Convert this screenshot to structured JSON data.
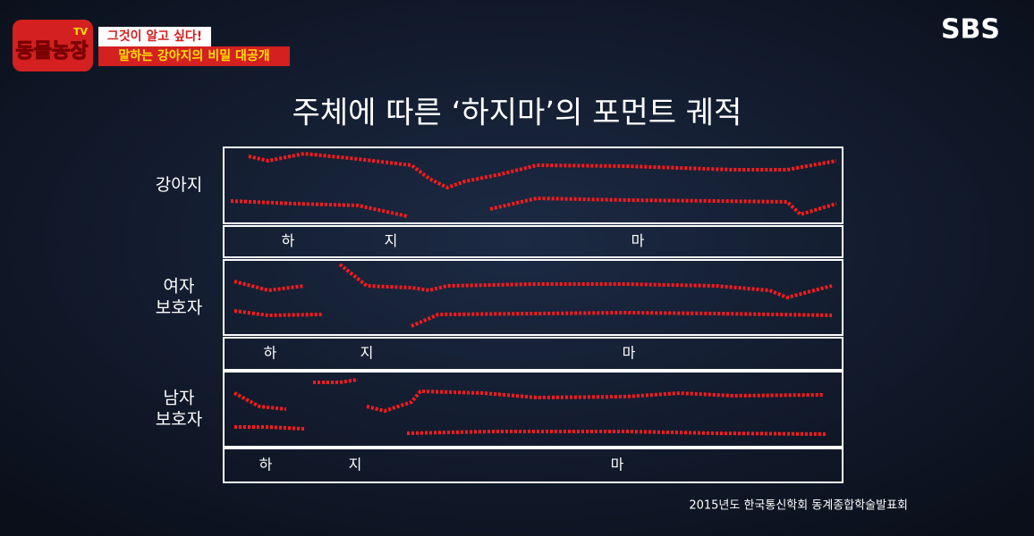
{
  "logo": {
    "title": "동물농장",
    "badge": "TV"
  },
  "captions": [
    "그것이 알고 싶다!",
    "말하는 강아지의 비밀 대공개"
  ],
  "broadcaster": "SBS",
  "title": "주체에 따른 ‘하지마’의 포먼트 궤적",
  "panels": [
    {
      "label": [
        "강아지"
      ],
      "syllables": [
        "하",
        "지",
        "마"
      ]
    },
    {
      "label": [
        "여자",
        "보호자"
      ],
      "syllables": [
        "하",
        "지",
        "마"
      ]
    },
    {
      "label": [
        "남자",
        "보호자"
      ],
      "syllables": [
        "하",
        "지",
        "마"
      ]
    }
  ],
  "source": "2015년도 한국통신학회 동계종합학술발표회"
}
